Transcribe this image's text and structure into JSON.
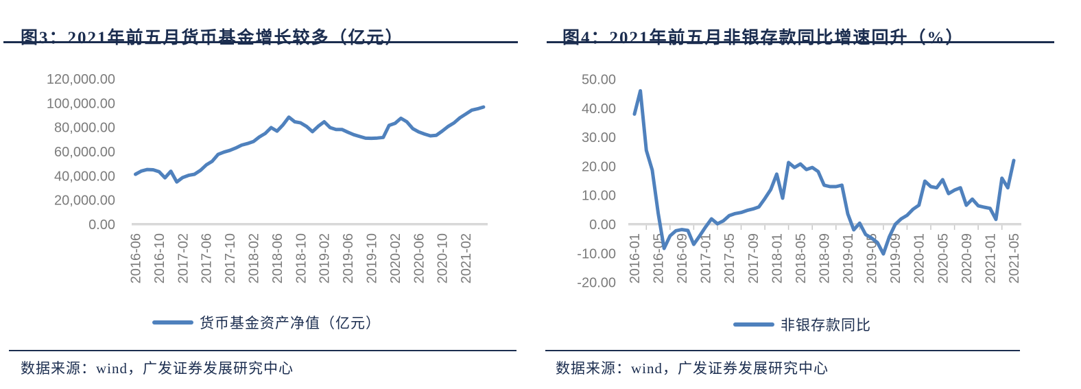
{
  "colors": {
    "accent_navy": "#1b2d4f",
    "series_blue": "#4F81BD",
    "axis_line_gray": "#d8d8d8",
    "tick_text_gray": "#7b7b7b"
  },
  "figures": [
    {
      "title": "图3：2021年前五月货币基金增长较多（亿元）",
      "legend": "货币基金资产净值（亿元）",
      "source": "数据来源：wind，广发证券发展研究中心"
    },
    {
      "title": "图4：2021年前五月非银存款同比增速回升（%）",
      "legend": "非银存款同比",
      "source": "数据来源：wind，广发证券发展研究中心"
    }
  ],
  "chart_data": [
    {
      "type": "line",
      "title": "图3：2021年前五月货币基金增长较多（亿元）",
      "xlabel": "",
      "ylabel": "",
      "ylim": [
        0,
        120000
      ],
      "grid": false,
      "legend_position": "bottom",
      "y_tick_labels": [
        "120,000.00",
        "100,000.00",
        "80,000.00",
        "60,000.00",
        "40,000.00",
        "20,000.00",
        "0.00"
      ],
      "x_tick_labels": [
        "2016-06",
        "2016-10",
        "2017-02",
        "2017-06",
        "2017-10",
        "2018-02",
        "2018-06",
        "2018-10",
        "2019-02",
        "2019-06",
        "2019-10",
        "2020-02",
        "2020-06",
        "2020-10",
        "2021-02"
      ],
      "x": [
        "2016-06",
        "2016-07",
        "2016-08",
        "2016-09",
        "2016-10",
        "2016-11",
        "2016-12",
        "2017-01",
        "2017-02",
        "2017-03",
        "2017-04",
        "2017-05",
        "2017-06",
        "2017-07",
        "2017-08",
        "2017-09",
        "2017-10",
        "2017-11",
        "2017-12",
        "2018-01",
        "2018-02",
        "2018-03",
        "2018-04",
        "2018-05",
        "2018-06",
        "2018-07",
        "2018-08",
        "2018-09",
        "2018-10",
        "2018-11",
        "2018-12",
        "2019-01",
        "2019-02",
        "2019-03",
        "2019-04",
        "2019-05",
        "2019-06",
        "2019-07",
        "2019-08",
        "2019-09",
        "2019-10",
        "2019-11",
        "2019-12",
        "2020-01",
        "2020-02",
        "2020-03",
        "2020-04",
        "2020-05",
        "2020-06",
        "2020-07",
        "2020-08",
        "2020-09",
        "2020-10",
        "2020-11",
        "2020-12",
        "2021-01",
        "2021-02",
        "2021-03",
        "2021-04",
        "2021-05"
      ],
      "series": [
        {
          "name": "货币基金资产净值（亿元）",
          "color": "#4F81BD",
          "values": [
            41300,
            44000,
            45200,
            45000,
            43500,
            38400,
            43800,
            35000,
            38600,
            40400,
            41300,
            44500,
            49000,
            52000,
            57700,
            59600,
            61000,
            63000,
            65400,
            66700,
            68300,
            72100,
            75000,
            79800,
            76900,
            82000,
            88500,
            84600,
            83700,
            80800,
            76500,
            81000,
            84600,
            79800,
            78300,
            78300,
            76000,
            74000,
            72500,
            71100,
            71000,
            71200,
            71700,
            81700,
            83300,
            87500,
            84600,
            79000,
            76300,
            74500,
            73000,
            73500,
            76900,
            80800,
            83700,
            87900,
            91000,
            94200,
            95300,
            96800
          ]
        }
      ]
    },
    {
      "type": "line",
      "title": "图4：2021年前五月非银存款同比增速回升（%）",
      "xlabel": "",
      "ylabel": "",
      "ylim": [
        -20,
        50
      ],
      "grid": false,
      "legend_position": "bottom",
      "y_tick_labels": [
        "50.00",
        "40.00",
        "30.00",
        "20.00",
        "10.00",
        "0.00",
        "-10.00",
        "-20.00"
      ],
      "x_tick_labels": [
        "2016-01",
        "2016-05",
        "2016-09",
        "2017-01",
        "2017-05",
        "2017-09",
        "2018-01",
        "2018-05",
        "2018-09",
        "2019-01",
        "2019-05",
        "2019-09",
        "2020-01",
        "2020-05",
        "2020-09",
        "2021-01",
        "2021-05"
      ],
      "x": [
        "2016-01",
        "2016-02",
        "2016-03",
        "2016-04",
        "2016-05",
        "2016-06",
        "2016-07",
        "2016-08",
        "2016-09",
        "2016-10",
        "2016-11",
        "2016-12",
        "2017-01",
        "2017-02",
        "2017-03",
        "2017-04",
        "2017-05",
        "2017-06",
        "2017-07",
        "2017-08",
        "2017-09",
        "2017-10",
        "2017-11",
        "2017-12",
        "2018-01",
        "2018-02",
        "2018-03",
        "2018-04",
        "2018-05",
        "2018-06",
        "2018-07",
        "2018-08",
        "2018-09",
        "2018-10",
        "2018-11",
        "2018-12",
        "2019-01",
        "2019-02",
        "2019-03",
        "2019-04",
        "2019-05",
        "2019-06",
        "2019-07",
        "2019-08",
        "2019-09",
        "2019-10",
        "2019-11",
        "2019-12",
        "2020-01",
        "2020-02",
        "2020-03",
        "2020-04",
        "2020-05",
        "2020-06",
        "2020-07",
        "2020-08",
        "2020-09",
        "2020-10",
        "2020-11",
        "2020-12",
        "2021-01",
        "2021-02",
        "2021-03",
        "2021-04",
        "2021-05"
      ],
      "series": [
        {
          "name": "非银存款同比",
          "color": "#4F81BD",
          "values": [
            38.0,
            46.0,
            25.5,
            18.7,
            3.8,
            -8.3,
            -4.0,
            -2.2,
            -1.8,
            -2.1,
            -6.9,
            -4.0,
            -0.9,
            1.9,
            0.2,
            1.2,
            3.0,
            3.7,
            4.1,
            4.8,
            5.3,
            6.0,
            8.9,
            12.0,
            17.3,
            9.0,
            21.3,
            19.6,
            20.8,
            18.9,
            19.6,
            18.2,
            13.5,
            13.0,
            13.0,
            13.5,
            3.6,
            -1.9,
            0.4,
            -3.5,
            -4.7,
            -6.3,
            -10.2,
            -4.3,
            0.0,
            1.9,
            3.1,
            5.2,
            6.6,
            14.9,
            13.0,
            12.6,
            15.4,
            10.6,
            11.8,
            12.6,
            6.6,
            8.7,
            6.4,
            5.9,
            5.5,
            1.7,
            15.9,
            12.6,
            22.0
          ]
        }
      ]
    }
  ]
}
